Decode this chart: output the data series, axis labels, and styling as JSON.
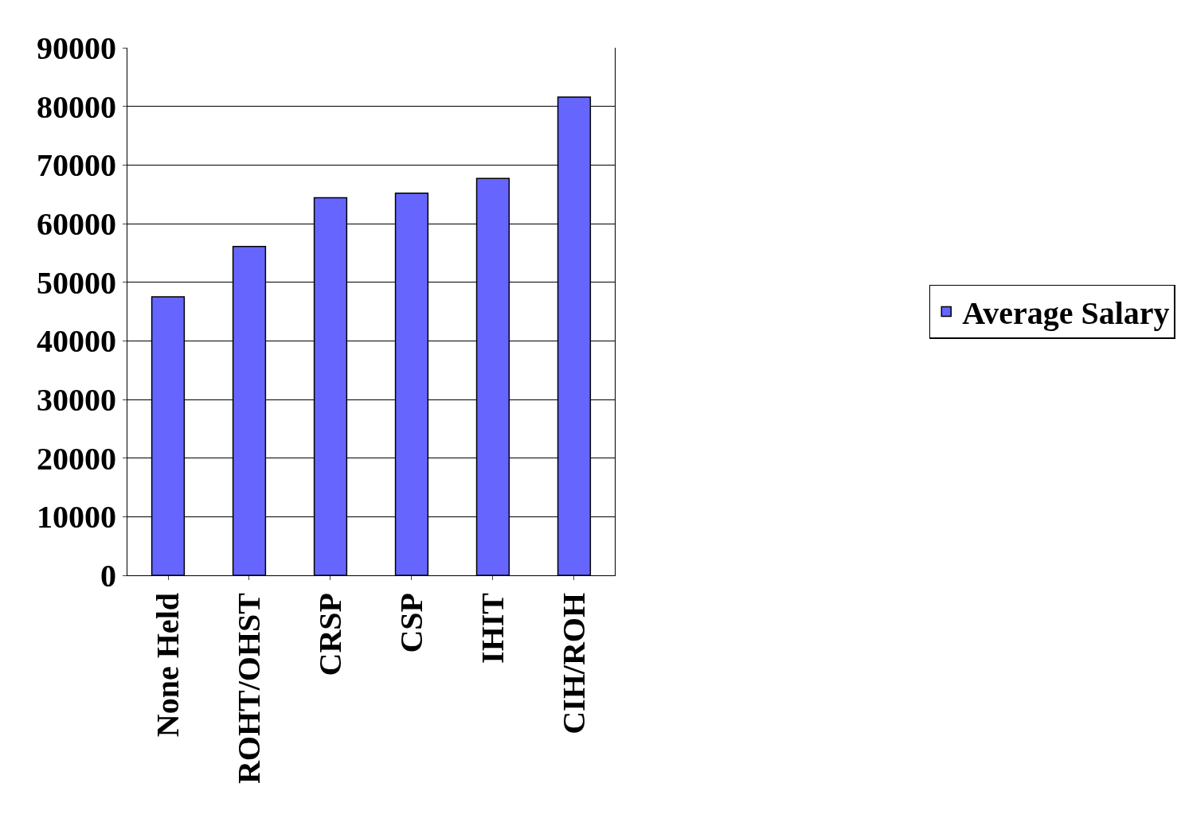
{
  "chart_data": {
    "type": "bar",
    "categories": [
      "None Held",
      "ROHT/OHST",
      "CRSP",
      "CSP",
      "IHIT",
      "CIH/ROH"
    ],
    "series": [
      {
        "name": "Average Salary",
        "color": "#6666ff",
        "values": [
          47500,
          56100,
          64400,
          65200,
          67700,
          81600
        ]
      }
    ],
    "ylim": [
      0,
      90000
    ],
    "yticks": [
      0,
      10000,
      20000,
      30000,
      40000,
      50000,
      60000,
      70000,
      80000,
      90000
    ],
    "grid": "y",
    "legend": "right"
  }
}
